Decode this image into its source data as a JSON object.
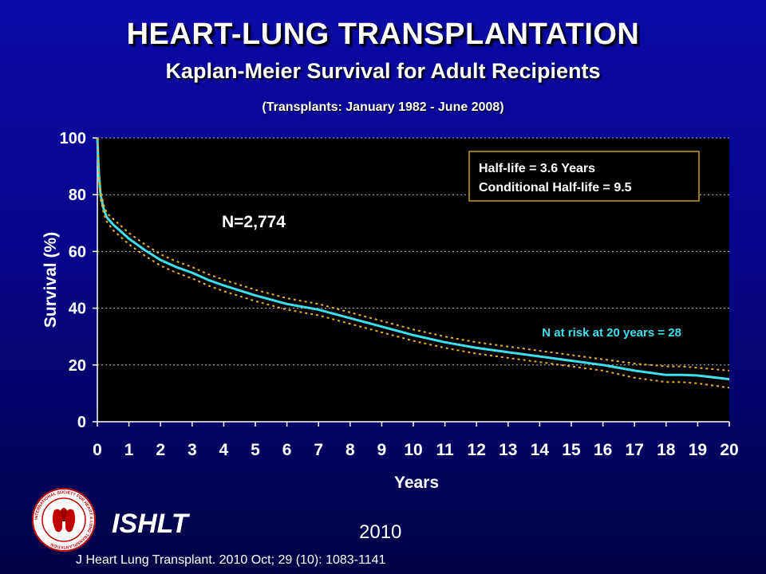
{
  "header": {
    "title": "HEART-LUNG TRANSPLANTATION",
    "subtitle": "Kaplan-Meier Survival for Adult Recipients",
    "period": "(Transplants: January 1982 - June 2008)"
  },
  "chart_data": {
    "type": "line",
    "xlabel": "Years",
    "ylabel": "Survival (%)",
    "xlim": [
      0,
      20
    ],
    "ylim": [
      0,
      100
    ],
    "x_ticks": [
      0,
      1,
      2,
      3,
      4,
      5,
      6,
      7,
      8,
      9,
      10,
      11,
      12,
      13,
      14,
      15,
      16,
      17,
      18,
      19,
      20
    ],
    "y_ticks": [
      0,
      20,
      40,
      60,
      80,
      100
    ],
    "grid": "horizontal dotted",
    "series": [
      {
        "role": "survival",
        "color": "#3fe0ee",
        "x": [
          0,
          0.05,
          0.1,
          0.2,
          0.3,
          0.5,
          1,
          1.5,
          2,
          2.5,
          3,
          3.5,
          4,
          5,
          6,
          7,
          8,
          9,
          10,
          11,
          12,
          13,
          14,
          15,
          16,
          17,
          18,
          18.5,
          19,
          20
        ],
        "y": [
          100,
          87,
          80,
          75,
          72,
          69.5,
          64.5,
          60.5,
          57,
          54.5,
          52.5,
          50,
          48,
          44.5,
          41.5,
          39.5,
          36.5,
          33.5,
          30.5,
          28,
          26,
          24.5,
          23,
          21.5,
          20,
          18,
          16.5,
          16.5,
          16.3,
          15
        ]
      },
      {
        "role": "upper confidence limit",
        "color": "#e8b030",
        "style": "dotted",
        "x": [
          0,
          0.05,
          0.1,
          0.2,
          0.3,
          0.5,
          1,
          1.5,
          2,
          2.5,
          3,
          3.5,
          4,
          5,
          6,
          7,
          8,
          9,
          10,
          11,
          12,
          13,
          14,
          15,
          16,
          17,
          18,
          18.5,
          19,
          20
        ],
        "y": [
          100,
          88.5,
          81.5,
          76.5,
          73.5,
          71.5,
          66.5,
          62.5,
          59,
          56.5,
          54.5,
          52,
          50,
          46.5,
          43.5,
          41.5,
          38.5,
          35.5,
          32.5,
          30,
          28,
          26.5,
          25,
          23.5,
          22,
          20.5,
          19.5,
          19.5,
          19,
          18
        ]
      },
      {
        "role": "lower confidence limit",
        "color": "#e8b030",
        "style": "dotted",
        "x": [
          0,
          0.05,
          0.1,
          0.2,
          0.3,
          0.5,
          1,
          1.5,
          2,
          2.5,
          3,
          3.5,
          4,
          5,
          6,
          7,
          8,
          9,
          10,
          11,
          12,
          13,
          14,
          15,
          16,
          17,
          18,
          18.5,
          19,
          20
        ],
        "y": [
          100,
          85.5,
          78.5,
          73.5,
          70.5,
          67.5,
          62.5,
          58.5,
          55,
          52.5,
          50.5,
          48,
          46,
          42.5,
          39.5,
          37.5,
          34.5,
          31.5,
          28.5,
          26,
          24,
          22.5,
          21,
          19.5,
          18,
          15.5,
          14,
          14,
          13.5,
          12
        ]
      }
    ],
    "annotations": {
      "n_total": "N=2,774",
      "half_life": "Half-life = 3.6 Years",
      "conditional_half_life": "Conditional Half-life = 9.5",
      "at_risk": "N at risk at 20 years = 28"
    }
  },
  "footer": {
    "org": "ISHLT",
    "year": "2010",
    "citation": "J Heart Lung Transplant. 2010 Oct; 29 (10): 1083-1141",
    "logo_icon": "ishlt-logo-icon",
    "logo_ring_text": "INTERNATIONAL SOCIETY FOR HEART & LUNG TRANSPLANTATION"
  },
  "colors": {
    "background_top": "#0a0aa8",
    "background_bottom": "#020244",
    "plot_background": "#000000",
    "survival_line": "#3fe0ee",
    "confidence_band": "#e8b030",
    "half_life_box_border": "#c8a020",
    "at_risk_text": "#3fe0ee"
  }
}
